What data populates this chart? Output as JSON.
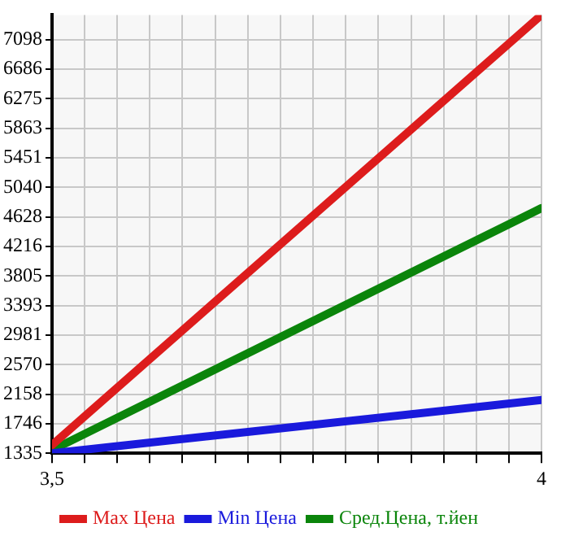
{
  "chart_data": {
    "type": "line",
    "x": [
      3.5,
      4
    ],
    "series": [
      {
        "name": "Max Цена",
        "color": "#dd1c1c",
        "values": [
          1450,
          7440
        ]
      },
      {
        "name": "Min Цена",
        "color": "#1a1adc",
        "values": [
          1335,
          2076
        ]
      },
      {
        "name": "Сред.Цена, т.йен",
        "color": "#0b850b",
        "values": [
          1380,
          4750
        ]
      }
    ],
    "xlim": [
      3.5,
      4
    ],
    "xticks": [
      {
        "value": 3.5,
        "label": "3,5"
      },
      {
        "value": 3.5333,
        "label": null
      },
      {
        "value": 3.5667,
        "label": null
      },
      {
        "value": 3.6,
        "label": null
      },
      {
        "value": 3.6333,
        "label": null
      },
      {
        "value": 3.6667,
        "label": null
      },
      {
        "value": 3.7,
        "label": null
      },
      {
        "value": 3.7333,
        "label": null
      },
      {
        "value": 3.7667,
        "label": null
      },
      {
        "value": 3.8,
        "label": null
      },
      {
        "value": 3.8333,
        "label": null
      },
      {
        "value": 3.8667,
        "label": null
      },
      {
        "value": 3.9,
        "label": null
      },
      {
        "value": 3.9333,
        "label": null
      },
      {
        "value": 3.9667,
        "label": null
      },
      4
    ],
    "ylim": [
      1335,
      7440
    ],
    "yticks": [
      1335,
      1746,
      2158,
      2570,
      2981,
      3393,
      3805,
      4216,
      4628,
      5040,
      5451,
      5863,
      6275,
      6686,
      7098
    ],
    "grid": true,
    "legend": "bottom",
    "marker": "none",
    "line_style": "solid"
  }
}
